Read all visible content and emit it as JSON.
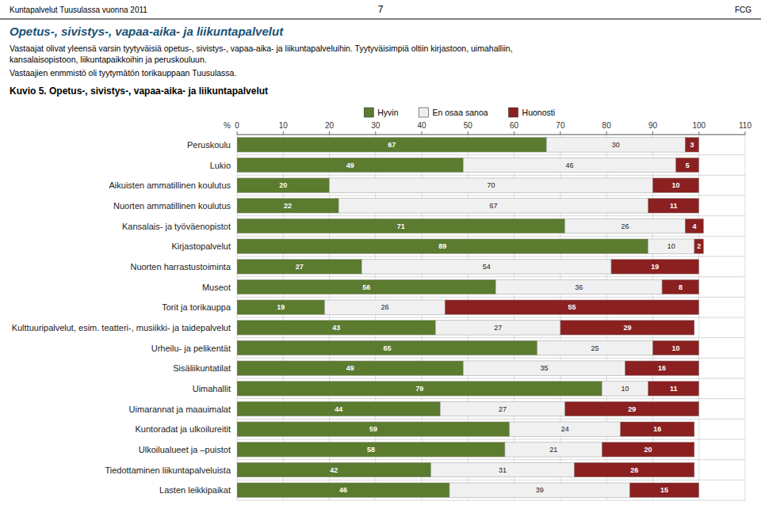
{
  "header": {
    "left": "Kuntapalvelut Tuusulassa vuonna 2011",
    "center": "7",
    "right": "FCG"
  },
  "section_title": "Opetus-, sivistys-, vapaa-aika- ja liikuntapalvelut",
  "paragraphs": [
    "Vastaajat olivat yleensä varsin tyytyväisiä opetus-, sivistys-, vapaa-aika- ja liikuntapalveluihin. Tyytyväisimpiä oltiin kirjastoon, uimahalliin,",
    "kansalaisopistoon, liikuntapaikkoihin ja peruskouluun.",
    "Vastaajien enmmistö oli tyytymätön torikauppaan Tuusulassa."
  ],
  "chart_data": {
    "type": "bar",
    "orientation": "horizontal",
    "stacked": true,
    "title": "Kuvio 5. Opetus-, sivistys-, vapaa-aika- ja liikuntapalvelut",
    "xlabel": "%",
    "categories": [
      "Peruskoulu",
      "Lukio",
      "Aikuisten ammatillinen koulutus",
      "Nuorten ammatillinen koulutus",
      "Kansalais- ja työväenopistot",
      "Kirjastopalvelut",
      "Nuorten harrastustoiminta",
      "Museot",
      "Torit ja torikauppa",
      "Kulttuuripalvelut, esim. teatteri-, musiikki- ja taidepalvelut",
      "Urheilu- ja pelikentät",
      "Sisäliikuntatilat",
      "Uimahallit",
      "Uimarannat ja maauimalat",
      "Kuntoradat ja ulkoilureitit",
      "Ulkoilualueet ja –puistot",
      "Tiedottaminen liikuntapalveluista",
      "Lasten leikkipaikat"
    ],
    "series": [
      {
        "name": "Hyvin",
        "color": "#5b7b2f",
        "values": [
          67,
          49,
          20,
          22,
          71,
          89,
          27,
          56,
          19,
          43,
          65,
          49,
          79,
          44,
          59,
          58,
          42,
          46
        ]
      },
      {
        "name": "En osaa sanoa",
        "color": "#f0f0f0",
        "values": [
          30,
          46,
          70,
          67,
          26,
          10,
          54,
          36,
          26,
          27,
          25,
          35,
          10,
          27,
          24,
          21,
          31,
          39
        ]
      },
      {
        "name": "Huonosti",
        "color": "#8b2020",
        "values": [
          3,
          5,
          10,
          11,
          4,
          2,
          19,
          8,
          55,
          29,
          10,
          16,
          11,
          29,
          16,
          20,
          26,
          15
        ]
      }
    ],
    "xlim": [
      0,
      110
    ],
    "xticks": [
      0,
      10,
      20,
      30,
      40,
      50,
      60,
      70,
      80,
      90,
      100,
      110
    ],
    "grid": true,
    "legend": "top",
    "data_labels": true
  }
}
